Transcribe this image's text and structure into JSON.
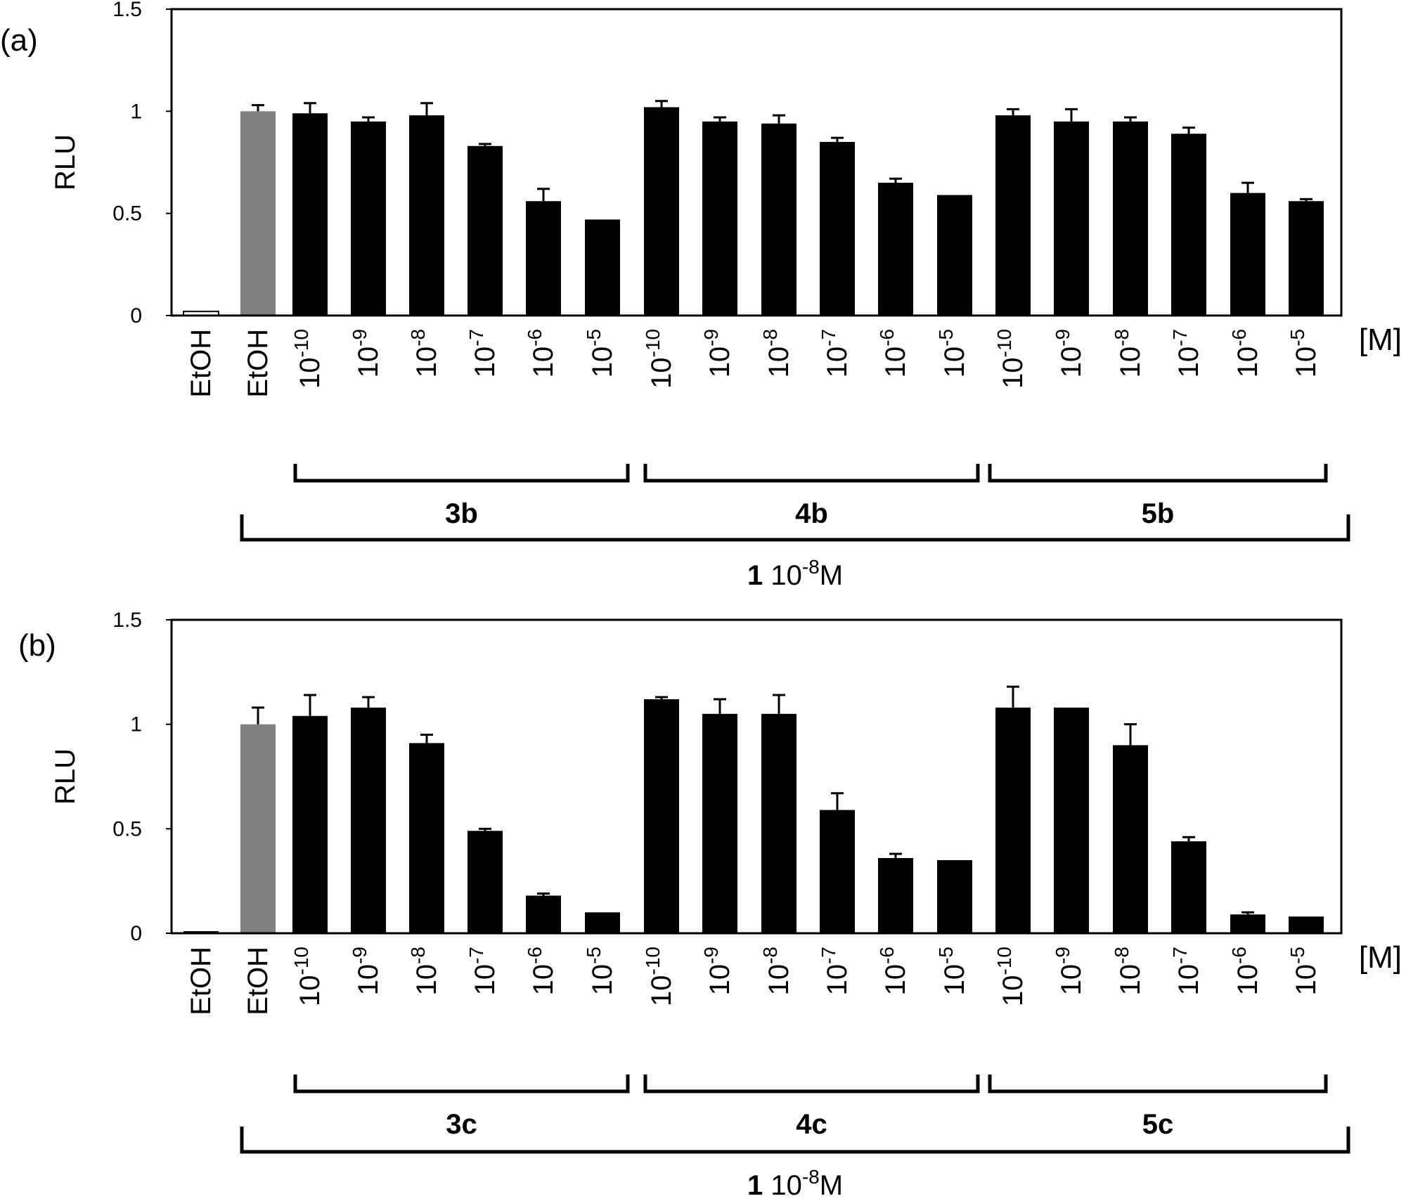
{
  "chart_data": [
    {
      "type": "bar",
      "panel_label": "(a)",
      "ylabel": "RLU",
      "ylim": [
        0,
        1.5
      ],
      "yticks": [
        "0",
        "0.5",
        "1",
        "1.5"
      ],
      "unit_label": "[M]",
      "categories": [
        {
          "base": "EtOH",
          "exp": ""
        },
        {
          "base": "EtOH",
          "exp": ""
        },
        {
          "base": "10",
          "exp": "-10"
        },
        {
          "base": "10",
          "exp": "-9"
        },
        {
          "base": "10",
          "exp": "-8"
        },
        {
          "base": "10",
          "exp": "-7"
        },
        {
          "base": "10",
          "exp": "-6"
        },
        {
          "base": "10",
          "exp": "-5"
        },
        {
          "base": "10",
          "exp": "-10"
        },
        {
          "base": "10",
          "exp": "-9"
        },
        {
          "base": "10",
          "exp": "-8"
        },
        {
          "base": "10",
          "exp": "-7"
        },
        {
          "base": "10",
          "exp": "-6"
        },
        {
          "base": "10",
          "exp": "-5"
        },
        {
          "base": "10",
          "exp": "-10"
        },
        {
          "base": "10",
          "exp": "-9"
        },
        {
          "base": "10",
          "exp": "-8"
        },
        {
          "base": "10",
          "exp": "-7"
        },
        {
          "base": "10",
          "exp": "-6"
        },
        {
          "base": "10",
          "exp": "-5"
        }
      ],
      "values": [
        0.02,
        1.0,
        0.99,
        0.95,
        0.98,
        0.83,
        0.56,
        0.47,
        1.02,
        0.95,
        0.94,
        0.85,
        0.65,
        0.59,
        0.98,
        0.95,
        0.95,
        0.89,
        0.6,
        0.56
      ],
      "errors": [
        0,
        0.03,
        0.05,
        0.02,
        0.06,
        0.01,
        0.06,
        0,
        0.03,
        0.02,
        0.04,
        0.02,
        0.02,
        0,
        0.03,
        0.06,
        0.02,
        0.03,
        0.05,
        0.01
      ],
      "colors": [
        "#ffffff",
        "#808080",
        "#000000",
        "#000000",
        "#000000",
        "#000000",
        "#000000",
        "#000000",
        "#000000",
        "#000000",
        "#000000",
        "#000000",
        "#000000",
        "#000000",
        "#000000",
        "#000000",
        "#000000",
        "#000000",
        "#000000",
        "#000000"
      ],
      "groups": [
        {
          "label": "3b",
          "start": 2,
          "end": 7
        },
        {
          "label": "4b",
          "start": 8,
          "end": 13
        },
        {
          "label": "5b",
          "start": 14,
          "end": 19
        }
      ],
      "outer_group": {
        "bold": "1",
        "text": " 10",
        "exp": "-8",
        "unit": "M",
        "start": 1,
        "end": 19
      }
    },
    {
      "type": "bar",
      "panel_label": "(b)",
      "ylabel": "RLU",
      "ylim": [
        0,
        1.5
      ],
      "yticks": [
        "0",
        "0.5",
        "1",
        "1.5"
      ],
      "unit_label": "[M]",
      "categories": [
        {
          "base": "EtOH",
          "exp": ""
        },
        {
          "base": "EtOH",
          "exp": ""
        },
        {
          "base": "10",
          "exp": "-10"
        },
        {
          "base": "10",
          "exp": "-9"
        },
        {
          "base": "10",
          "exp": "-8"
        },
        {
          "base": "10",
          "exp": "-7"
        },
        {
          "base": "10",
          "exp": "-6"
        },
        {
          "base": "10",
          "exp": "-5"
        },
        {
          "base": "10",
          "exp": "-10"
        },
        {
          "base": "10",
          "exp": "-9"
        },
        {
          "base": "10",
          "exp": "-8"
        },
        {
          "base": "10",
          "exp": "-7"
        },
        {
          "base": "10",
          "exp": "-6"
        },
        {
          "base": "10",
          "exp": "-5"
        },
        {
          "base": "10",
          "exp": "-10"
        },
        {
          "base": "10",
          "exp": "-9"
        },
        {
          "base": "10",
          "exp": "-8"
        },
        {
          "base": "10",
          "exp": "-7"
        },
        {
          "base": "10",
          "exp": "-6"
        },
        {
          "base": "10",
          "exp": "-5"
        }
      ],
      "values": [
        0.01,
        1.0,
        1.04,
        1.08,
        0.91,
        0.49,
        0.18,
        0.1,
        1.12,
        1.05,
        1.05,
        0.59,
        0.36,
        0.35,
        1.08,
        1.08,
        0.9,
        0.44,
        0.09,
        0.08
      ],
      "errors": [
        0,
        0.08,
        0.1,
        0.05,
        0.04,
        0.01,
        0.01,
        0,
        0.01,
        0.07,
        0.09,
        0.08,
        0.02,
        0,
        0.1,
        0,
        0.1,
        0.02,
        0.01,
        0
      ],
      "colors": [
        "#000000",
        "#808080",
        "#000000",
        "#000000",
        "#000000",
        "#000000",
        "#000000",
        "#000000",
        "#000000",
        "#000000",
        "#000000",
        "#000000",
        "#000000",
        "#000000",
        "#000000",
        "#000000",
        "#000000",
        "#000000",
        "#000000",
        "#000000"
      ],
      "groups": [
        {
          "label": "3c",
          "start": 2,
          "end": 7
        },
        {
          "label": "4c",
          "start": 8,
          "end": 13
        },
        {
          "label": "5c",
          "start": 14,
          "end": 19
        }
      ],
      "outer_group": {
        "bold": "1",
        "text": " 10",
        "exp": "-8",
        "unit": "M",
        "start": 1,
        "end": 19
      }
    }
  ]
}
